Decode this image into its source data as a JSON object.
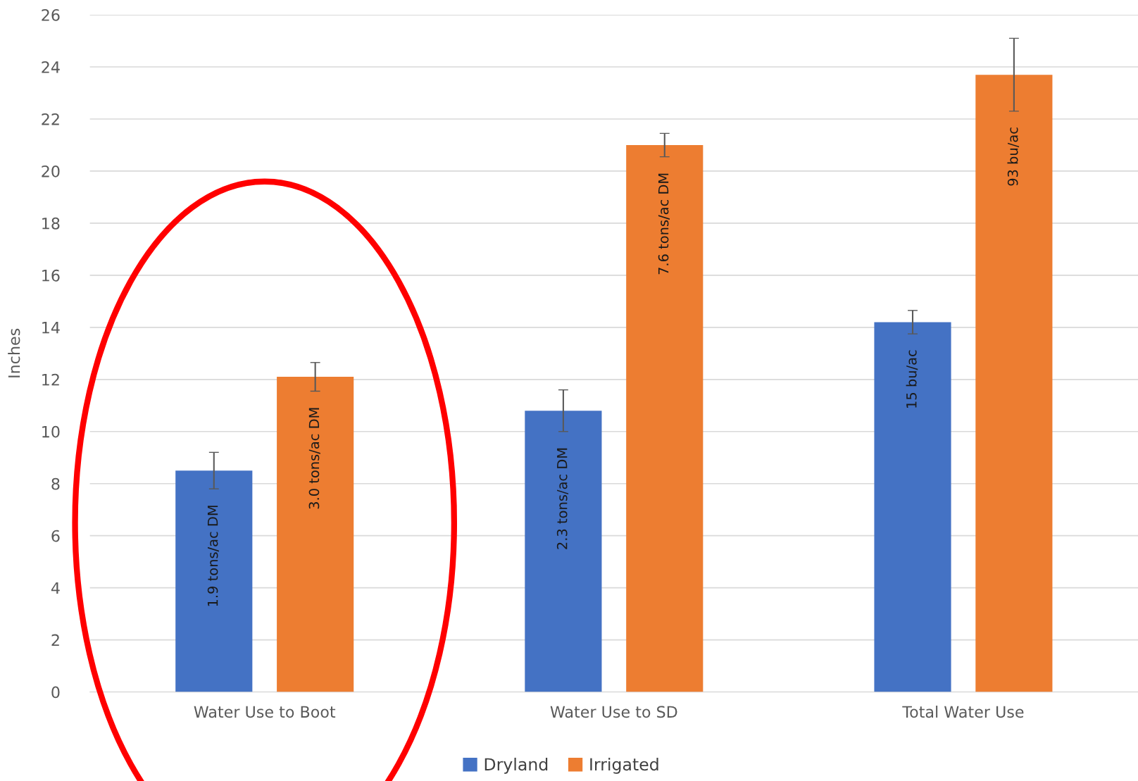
{
  "chart_data": {
    "type": "bar",
    "ylabel": "Inches",
    "categories": [
      "Water Use to Boot",
      "Water Use to SD",
      "Total Water Use"
    ],
    "series": [
      {
        "name": "Dryland",
        "color": "#4472c4",
        "values": [
          8.5,
          10.8,
          14.2
        ],
        "errors": [
          0.7,
          0.8,
          0.45
        ]
      },
      {
        "name": "Irrigated",
        "color": "#ed7d31",
        "values": [
          12.1,
          21.0,
          23.7
        ],
        "errors": [
          0.55,
          0.45,
          1.4
        ]
      }
    ],
    "annotations": [
      "1.9 tons/ac DM",
      "3.0 tons/ac DM",
      "2.3 tons/ac DM",
      "7.6 tons/ac DM",
      "15 bu/ac",
      "93 bu/ac"
    ],
    "ylim": [
      0,
      26
    ],
    "yticks": [
      0,
      2,
      4,
      6,
      8,
      10,
      12,
      14,
      16,
      18,
      20,
      22,
      24,
      26
    ],
    "grid": "y",
    "legend": "bottom"
  }
}
